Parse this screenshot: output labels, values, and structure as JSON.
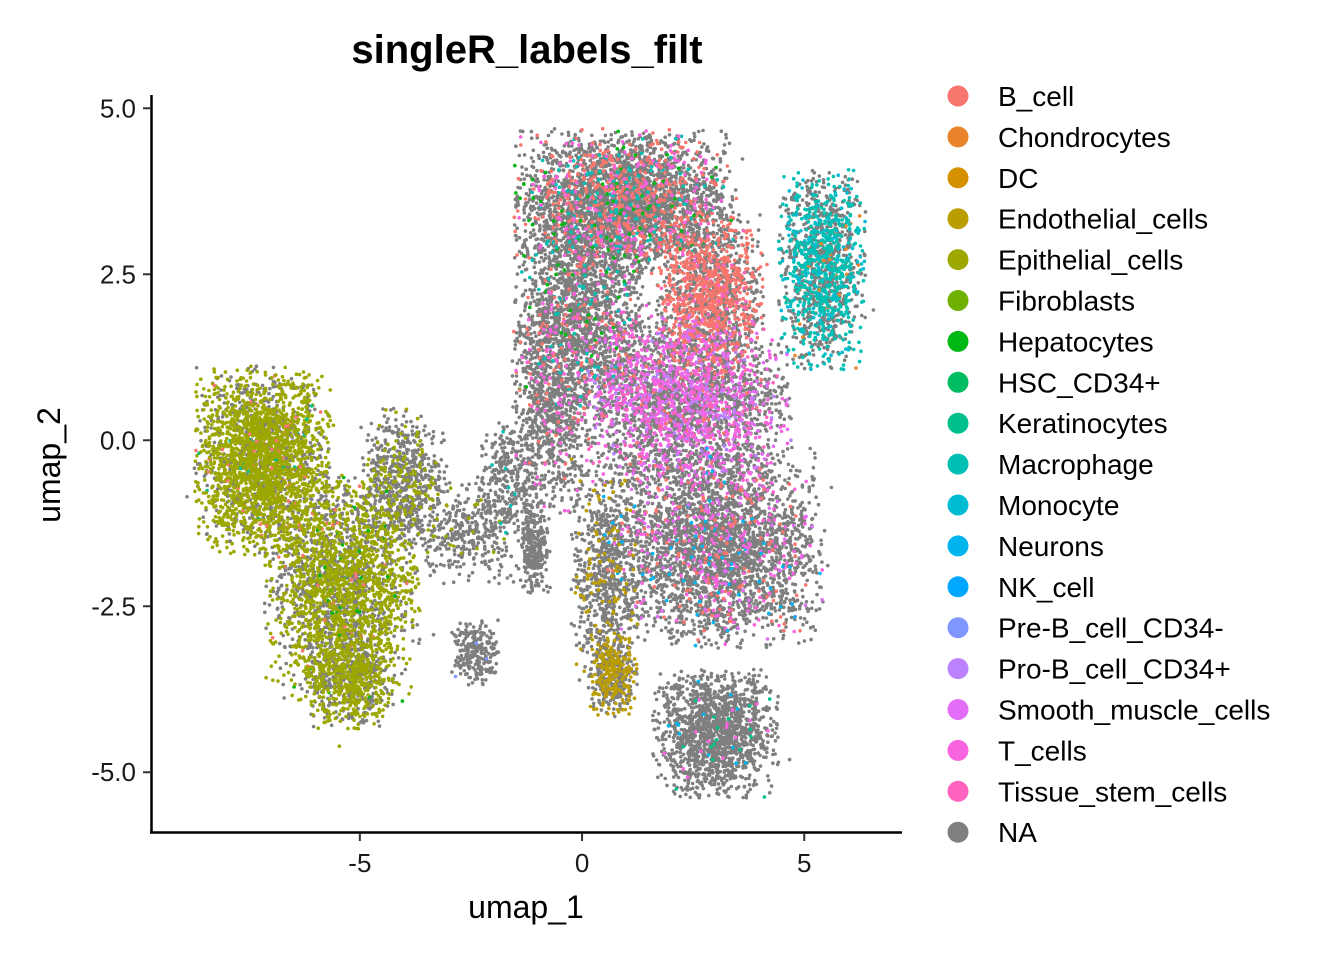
{
  "chart_data": {
    "type": "scatter",
    "title": "singleR_labels_filt",
    "xlabel": "umap_1",
    "ylabel": "umap_2",
    "xlim": [
      -9.7,
      7.2
    ],
    "ylim": [
      -5.9,
      5.2
    ],
    "x_ticks": [
      -5,
      0,
      5
    ],
    "x_tick_labels": [
      "-5",
      "0",
      "5"
    ],
    "y_ticks": [
      -5,
      -2.5,
      0,
      2.5,
      5
    ],
    "y_tick_labels": [
      "-5.0",
      "-2.5",
      "0.0",
      "2.5",
      "5.0"
    ],
    "grid": false,
    "legend_position": "right",
    "series": [
      {
        "name": "B_cell",
        "color": "#F8766D"
      },
      {
        "name": "Chondrocytes",
        "color": "#E9842C"
      },
      {
        "name": "DC",
        "color": "#D69100"
      },
      {
        "name": "Endothelial_cells",
        "color": "#BC9D00"
      },
      {
        "name": "Epithelial_cells",
        "color": "#9CA700"
      },
      {
        "name": "Fibroblasts",
        "color": "#6FB000"
      },
      {
        "name": "Hepatocytes",
        "color": "#00B813"
      },
      {
        "name": "HSC_CD34+",
        "color": "#00BD61"
      },
      {
        "name": "Keratinocytes",
        "color": "#00C08E"
      },
      {
        "name": "Macrophage",
        "color": "#00C0B4"
      },
      {
        "name": "Monocyte",
        "color": "#00BDD4"
      },
      {
        "name": "Neurons",
        "color": "#00B5EE"
      },
      {
        "name": "NK_cell",
        "color": "#00A7FF"
      },
      {
        "name": "Pre-B_cell_CD34-",
        "color": "#7F96FF"
      },
      {
        "name": "Pro-B_cell_CD34+",
        "color": "#BC81FF"
      },
      {
        "name": "Smooth_muscle_cells",
        "color": "#E26EF7"
      },
      {
        "name": "T_cells",
        "color": "#F863DF"
      },
      {
        "name": "Tissue_stem_cells",
        "color": "#FF62BF"
      },
      {
        "name": "NA",
        "color": "#7F7F7F"
      }
    ],
    "clusters": [
      {
        "cx": -7.2,
        "cy": -0.3,
        "rx": 1.4,
        "ry": 1.3,
        "n": 2600,
        "mix": {
          "Epithelial_cells": 0.72,
          "NA": 0.25,
          "B_cell": 0.02,
          "Keratinocytes": 0.01
        }
      },
      {
        "cx": -5.4,
        "cy": -2.2,
        "rx": 1.6,
        "ry": 1.6,
        "n": 2600,
        "mix": {
          "Epithelial_cells": 0.55,
          "NA": 0.43,
          "Hepatocytes": 0.01,
          "B_cell": 0.01
        }
      },
      {
        "cx": -5.2,
        "cy": -3.6,
        "rx": 0.9,
        "ry": 0.7,
        "n": 700,
        "mix": {
          "Epithelial_cells": 0.6,
          "NA": 0.4
        }
      },
      {
        "cx": -4.0,
        "cy": -0.6,
        "rx": 0.9,
        "ry": 1.0,
        "n": 700,
        "mix": {
          "NA": 0.8,
          "Epithelial_cells": 0.2
        }
      },
      {
        "cx": -2.6,
        "cy": -1.4,
        "rx": 1.1,
        "ry": 0.7,
        "n": 350,
        "mix": {
          "NA": 0.95,
          "Epithelial_cells": 0.05
        }
      },
      {
        "cx": -2.4,
        "cy": -3.2,
        "rx": 0.5,
        "ry": 0.45,
        "n": 250,
        "mix": {
          "NA": 0.97,
          "Pre-B_cell_CD34-": 0.03
        }
      },
      {
        "cx": -1.7,
        "cy": -0.6,
        "rx": 0.6,
        "ry": 0.8,
        "n": 300,
        "mix": {
          "NA": 0.97,
          "Macrophage": 0.03
        }
      },
      {
        "cx": -1.1,
        "cy": -1.6,
        "rx": 0.35,
        "ry": 0.7,
        "n": 300,
        "mix": {
          "NA": 1.0
        }
      },
      {
        "cx": 1.0,
        "cy": 3.6,
        "rx": 2.3,
        "ry": 1.0,
        "n": 3400,
        "mix": {
          "NA": 0.78,
          "B_cell": 0.12,
          "T_cells": 0.05,
          "Macrophage": 0.03,
          "Hepatocytes": 0.02
        }
      },
      {
        "cx": 2.9,
        "cy": 2.2,
        "rx": 1.1,
        "ry": 1.1,
        "n": 1400,
        "mix": {
          "B_cell": 0.45,
          "NA": 0.5,
          "Tissue_stem_cells": 0.05
        }
      },
      {
        "cx": 5.4,
        "cy": 2.6,
        "rx": 0.9,
        "ry": 1.4,
        "n": 1400,
        "mix": {
          "Macrophage": 0.38,
          "Monocyte": 0.1,
          "NA": 0.5,
          "Chondrocytes": 0.02
        }
      },
      {
        "cx": 2.3,
        "cy": 0.6,
        "rx": 2.2,
        "ry": 1.2,
        "n": 3000,
        "mix": {
          "NA": 0.6,
          "T_cells": 0.18,
          "Smooth_muscle_cells": 0.1,
          "Tissue_stem_cells": 0.06,
          "Pro-B_cell_CD34+": 0.04,
          "B_cell": 0.02
        }
      },
      {
        "cx": 0.0,
        "cy": 2.0,
        "rx": 1.4,
        "ry": 1.5,
        "n": 1800,
        "mix": {
          "NA": 0.85,
          "B_cell": 0.06,
          "T_cells": 0.04,
          "Macrophage": 0.03,
          "Hepatocytes": 0.02
        }
      },
      {
        "cx": 3.0,
        "cy": -1.6,
        "rx": 2.3,
        "ry": 1.4,
        "n": 3200,
        "mix": {
          "NA": 0.86,
          "T_cells": 0.06,
          "B_cell": 0.04,
          "Smooth_muscle_cells": 0.02,
          "Neurons": 0.02
        }
      },
      {
        "cx": 0.5,
        "cy": -2.0,
        "rx": 0.7,
        "ry": 1.6,
        "n": 700,
        "mix": {
          "NA": 0.85,
          "Endothelial_cells": 0.15
        }
      },
      {
        "cx": 0.7,
        "cy": -3.5,
        "rx": 0.5,
        "ry": 0.6,
        "n": 450,
        "mix": {
          "Endothelial_cells": 0.45,
          "NA": 0.55
        }
      },
      {
        "cx": 3.0,
        "cy": -4.4,
        "rx": 1.3,
        "ry": 0.9,
        "n": 1500,
        "mix": {
          "NA": 0.97,
          "Neurons": 0.01,
          "Keratinocytes": 0.01,
          "T_cells": 0.01
        }
      },
      {
        "cx": -0.7,
        "cy": 0.5,
        "rx": 0.8,
        "ry": 1.5,
        "n": 900,
        "mix": {
          "NA": 0.9,
          "B_cell": 0.05,
          "T_cells": 0.05
        }
      }
    ]
  }
}
